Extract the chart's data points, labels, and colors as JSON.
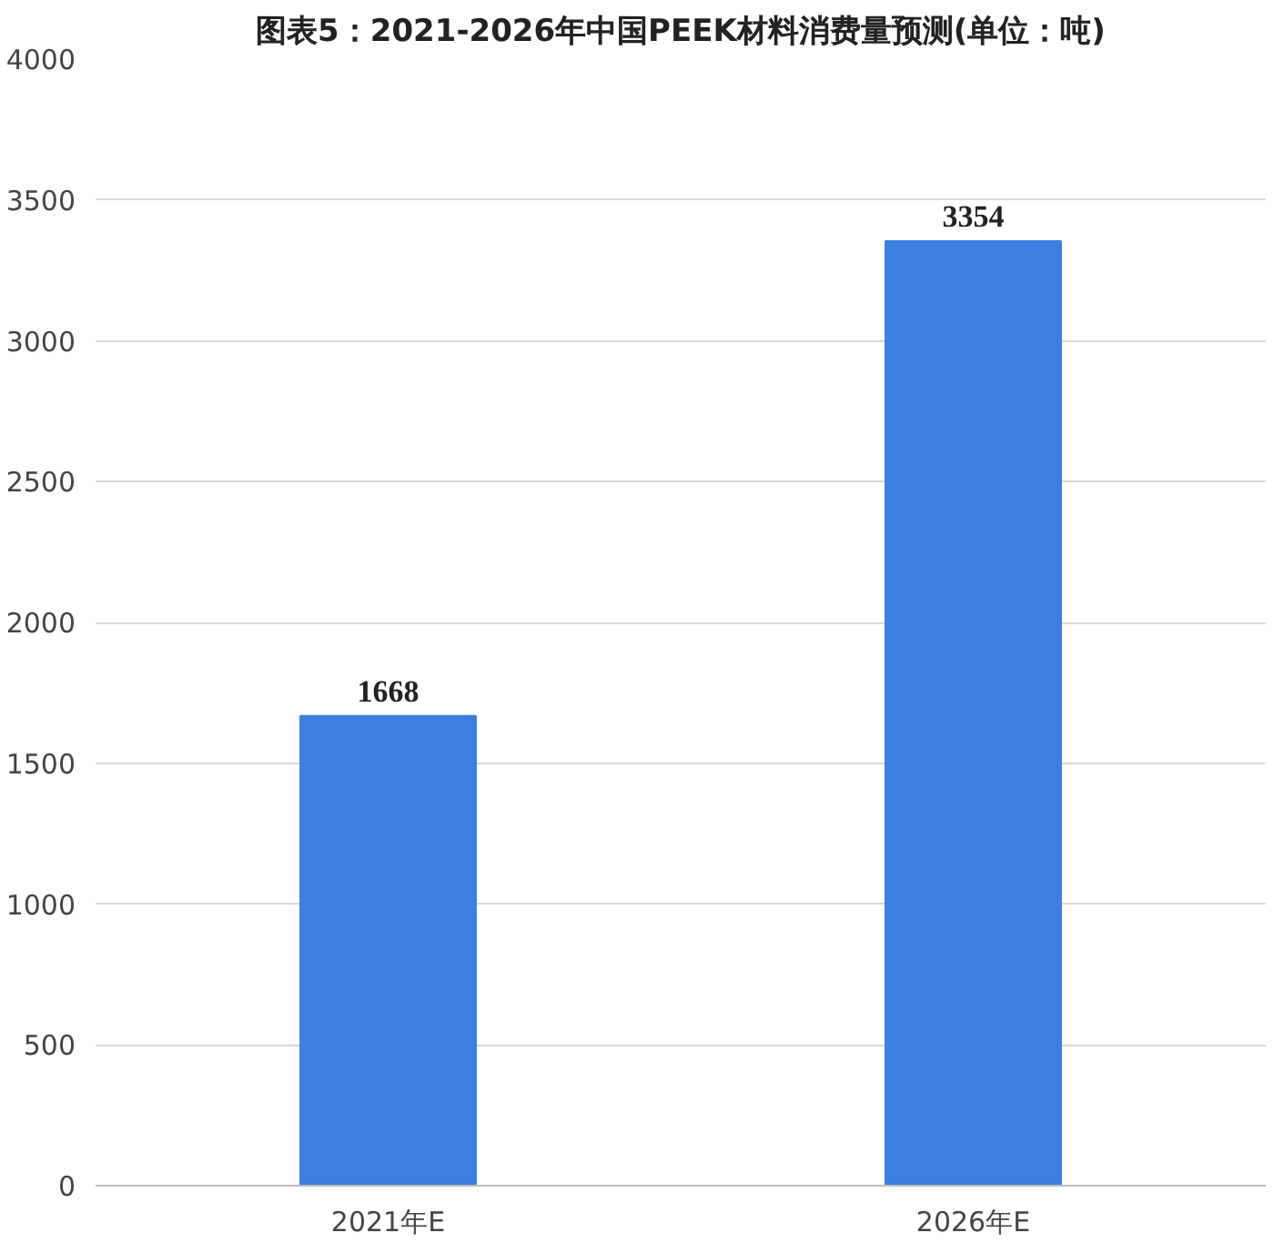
{
  "chart_data": {
    "type": "bar",
    "title": "图表5：2021-2026年中国PEEK材料消费量预测(单位：吨)",
    "categories": [
      "2021年E",
      "2026年E"
    ],
    "values": [
      1668,
      3354
    ],
    "color": "#3d7fe0",
    "ylim": [
      0,
      4000
    ],
    "yticks": [
      0,
      500,
      1000,
      1500,
      2000,
      2500,
      3000,
      3500,
      4000
    ],
    "grid": "y",
    "data_labels": true
  }
}
